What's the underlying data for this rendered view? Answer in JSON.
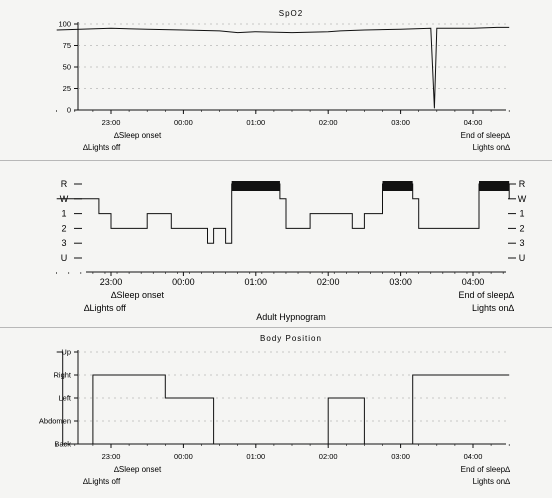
{
  "panels": {
    "spo2_title": "SpO2",
    "hypnogram_title": "Adult Hypnogram",
    "body_title": "Body Position"
  },
  "events": {
    "sleep_onset": "Sleep onset",
    "lights_off": "Lights off",
    "end_of_sleep": "End of sleep",
    "lights_on": "Lights on"
  },
  "colors": {
    "line": "#111111",
    "grid": "#9a9a9a",
    "background": "#f5f5f3"
  },
  "chart_data": [
    {
      "type": "line",
      "title": "SpO2",
      "x_ticks": [
        "23:00",
        "00:00",
        "01:00",
        "02:00",
        "03:00",
        "04:00"
      ],
      "y_ticks": [
        "0",
        "25",
        "50",
        "75",
        "100"
      ],
      "ylim": [
        0,
        100
      ],
      "x": [
        "22:15",
        "23:00",
        "23:30",
        "00:00",
        "00:30",
        "00:45",
        "01:00",
        "01:30",
        "02:00",
        "02:10",
        "02:30",
        "03:00",
        "03:25",
        "03:28",
        "03:30",
        "04:00",
        "04:20",
        "04:30"
      ],
      "values": [
        93,
        95,
        94,
        93,
        92,
        90,
        91,
        90,
        91,
        92,
        93,
        94,
        95,
        2,
        95,
        95,
        96,
        96
      ],
      "grid": true
    },
    {
      "type": "line",
      "title": "Adult Hypnogram",
      "y_categories": [
        "R",
        "W",
        "1",
        "2",
        "3",
        "U"
      ],
      "x_ticks": [
        "23:00",
        "00:00",
        "01:00",
        "02:00",
        "03:00",
        "04:00"
      ],
      "x": [
        "22:15",
        "22:50",
        "23:00",
        "23:30",
        "23:50",
        "00:10",
        "00:20",
        "00:25",
        "00:35",
        "00:40",
        "01:20",
        "01:25",
        "01:45",
        "02:20",
        "02:30",
        "02:45",
        "03:10",
        "03:15",
        "03:40",
        "04:05",
        "04:30"
      ],
      "stages": [
        "W",
        "1",
        "2",
        "1",
        "2",
        "2",
        "3",
        "2",
        "3",
        "R",
        "W",
        "2",
        "1",
        "2",
        "1",
        "R",
        "W",
        "2",
        "2",
        "R",
        "W"
      ],
      "grid": false
    },
    {
      "type": "line",
      "title": "Body Position",
      "y_categories": [
        "Up",
        "Right",
        "Left",
        "Abdomen",
        "Back"
      ],
      "x_ticks": [
        "23:00",
        "00:00",
        "01:00",
        "02:00",
        "03:00",
        "04:00"
      ],
      "x": [
        "22:15",
        "22:20",
        "22:45",
        "23:45",
        "00:25",
        "02:00",
        "02:30",
        "03:10",
        "04:30"
      ],
      "positions": [
        "Up",
        "Back",
        "Right",
        "Left",
        "Back",
        "Left",
        "Back",
        "Right",
        "Right"
      ],
      "grid": true
    }
  ]
}
